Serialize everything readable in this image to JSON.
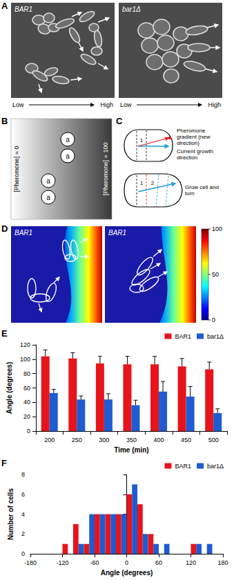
{
  "panels": {
    "A": {
      "letter": "A",
      "images": [
        "BAR1",
        "bar1Δ"
      ],
      "gradient_low": "Low",
      "gradient_high": "High"
    },
    "B": {
      "letter": "B",
      "left": "[Pheromone] = 0",
      "right": "[Pheromone] = 100",
      "cell": "a"
    },
    "C": {
      "letter": "C",
      "gradient": "Pheromone gradient (new direction)",
      "current": "Current growth direction",
      "grow": "Grow cell and turn",
      "steps": [
        "1",
        "2"
      ]
    },
    "D": {
      "letter": "D",
      "titles": [
        "BAR1",
        "BAR1"
      ],
      "colorbar": {
        "range": [
          0,
          100
        ],
        "ticks": [
          0,
          50,
          100
        ]
      }
    },
    "E": {
      "letter": "E"
    },
    "F": {
      "letter": "F"
    }
  },
  "chart_data": [
    {
      "type": "bar",
      "x_label": "Time (min)",
      "y_label": "Angle (degrees)",
      "categories": [
        "200",
        "250",
        "300",
        "350",
        "400",
        "450",
        "500"
      ],
      "series": [
        {
          "name": "BAR1",
          "color": "#e8141b",
          "values": [
            104,
            101,
            94,
            93,
            93,
            90,
            86
          ],
          "errors": [
            9,
            8,
            10,
            11,
            11,
            11,
            10
          ]
        },
        {
          "name": "bar1Δ",
          "color": "#1f5bd1",
          "values": [
            53,
            44,
            44,
            36,
            55,
            48,
            25
          ],
          "errors": [
            5,
            5,
            8,
            7,
            14,
            14,
            6
          ]
        }
      ],
      "ylim": [
        0,
        120
      ],
      "yticks": [
        0,
        20,
        40,
        60,
        80,
        100,
        120
      ],
      "grid": false,
      "legend": "top-right"
    },
    {
      "type": "histogram",
      "x_label": "Angle (degrees)",
      "y_label": "Number of cells",
      "bins": [
        -120,
        -100,
        -80,
        -60,
        -40,
        -20,
        0,
        20,
        40,
        60,
        80,
        100,
        120,
        140,
        160
      ],
      "series": [
        {
          "name": "BAR1",
          "color": "#e8141b",
          "values": [
            1,
            3,
            1,
            4,
            4,
            4,
            6,
            5,
            2,
            0,
            0,
            0,
            1,
            0
          ]
        },
        {
          "name": "bar1Δ",
          "color": "#1f5bd1",
          "values": [
            0,
            1,
            4,
            4,
            4,
            4,
            7,
            2,
            1,
            1,
            0,
            0,
            1,
            1
          ]
        }
      ],
      "xlim": [
        -180,
        180
      ],
      "xticks": [
        -180,
        -120,
        -60,
        0,
        60,
        120,
        180
      ],
      "ylim": [
        0,
        8
      ],
      "yticks": [
        0,
        2,
        4,
        6,
        8
      ],
      "grid": false,
      "legend": "top-right"
    }
  ]
}
